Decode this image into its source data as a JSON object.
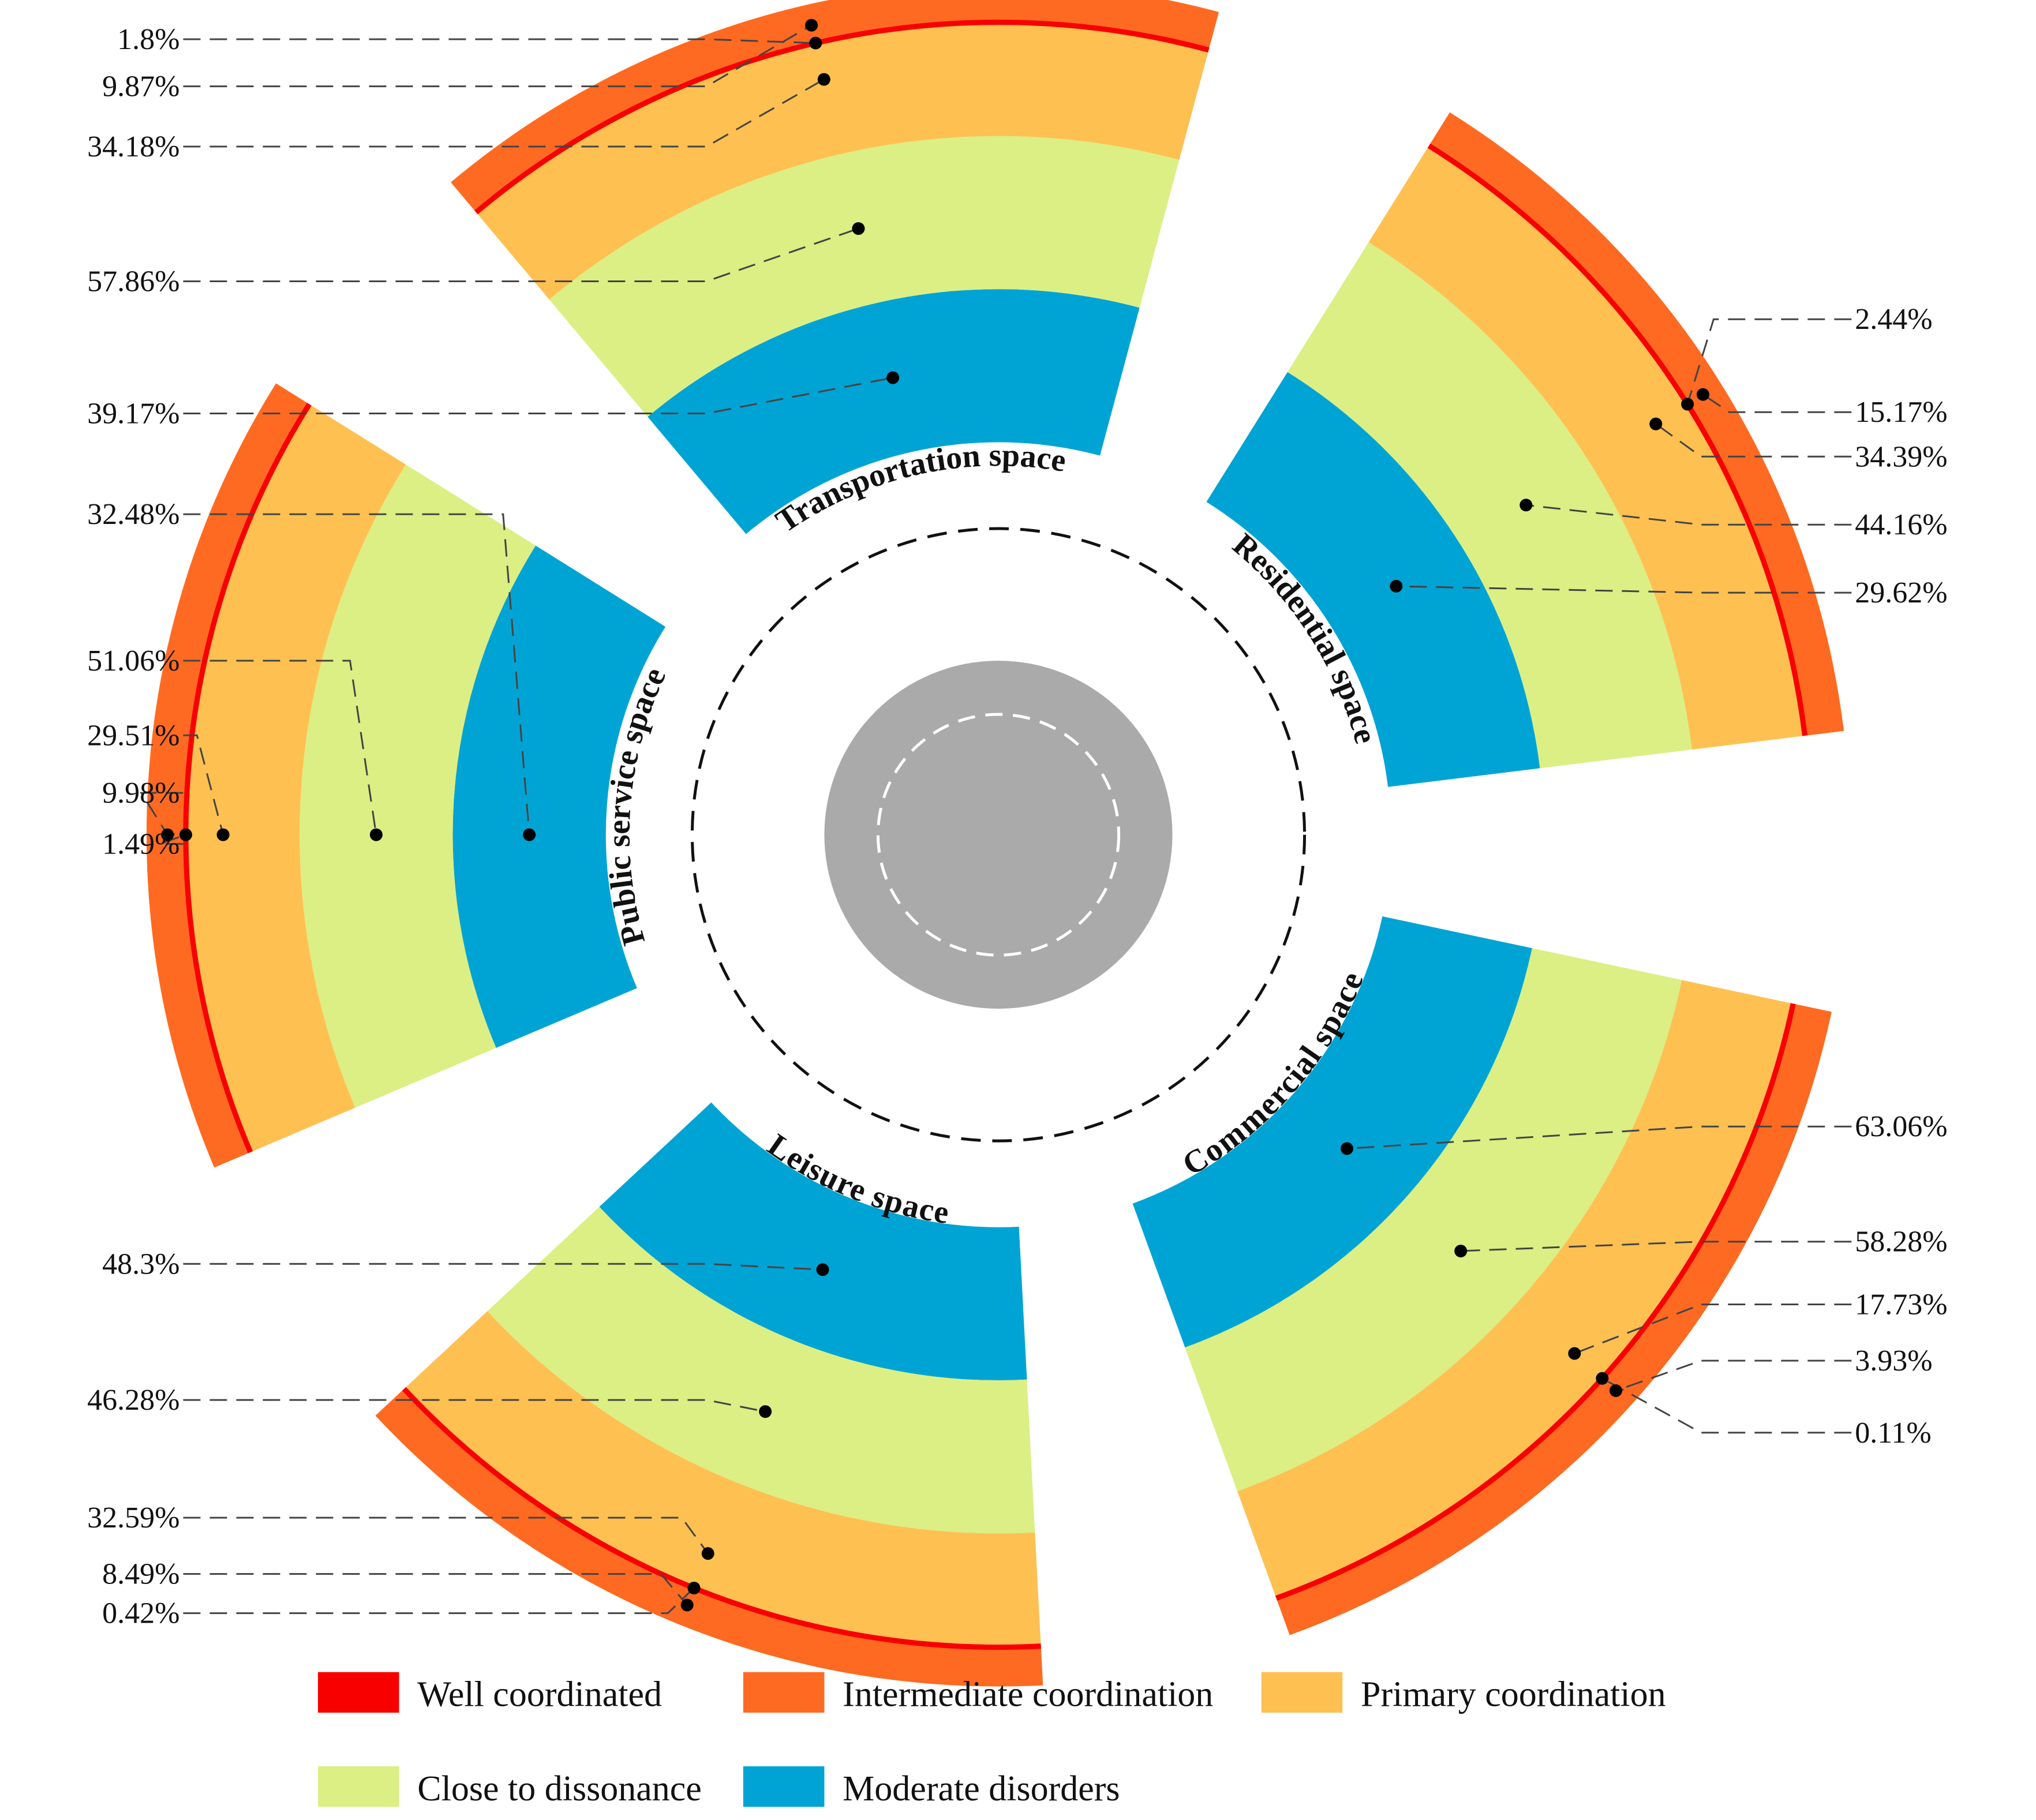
{
  "chart_data": {
    "type": "radial-bar",
    "levels": [
      {
        "name": "Well coordinated",
        "color": "#f80000"
      },
      {
        "name": "Intermediate coordination",
        "color": "#ff6a22"
      },
      {
        "name": "Primary coordination",
        "color": "#ffc052"
      },
      {
        "name": "Close to dissonance",
        "color": "#dbef84"
      },
      {
        "name": "Moderate disorders",
        "color": "#00a4d4"
      }
    ],
    "center_color": "#aaaaaa",
    "sectors": [
      {
        "name": "Transportation space",
        "values": [
          {
            "level": "Well coordinated",
            "label": "1.8%"
          },
          {
            "level": "Intermediate coordination",
            "label": "9.87%"
          },
          {
            "level": "Primary coordination",
            "label": "34.18%"
          },
          {
            "level": "Close to dissonance",
            "label": "57.86%"
          },
          {
            "level": "Moderate disorders",
            "label": "39.17%"
          }
        ]
      },
      {
        "name": "Residential space",
        "values": [
          {
            "level": "Well coordinated",
            "label": "2.44%"
          },
          {
            "level": "Intermediate coordination",
            "label": "15.17%"
          },
          {
            "level": "Primary coordination",
            "label": "34.39%"
          },
          {
            "level": "Close to dissonance",
            "label": "44.16%"
          },
          {
            "level": "Moderate disorders",
            "label": "29.62%"
          }
        ]
      },
      {
        "name": "Commercial space",
        "values": [
          {
            "level": "Well coordinated",
            "label": "0.11%"
          },
          {
            "level": "Intermediate coordination",
            "label": "3.93%"
          },
          {
            "level": "Primary coordination",
            "label": "17.73%"
          },
          {
            "level": "Close to dissonance",
            "label": "58.28%"
          },
          {
            "level": "Moderate disorders",
            "label": "63.06%"
          }
        ]
      },
      {
        "name": "Leisure space",
        "values": [
          {
            "level": "Well coordinated",
            "label": "0.42%"
          },
          {
            "level": "Intermediate coordination",
            "label": "8.49%"
          },
          {
            "level": "Primary coordination",
            "label": "32.59%"
          },
          {
            "level": "Close to dissonance",
            "label": "46.28%"
          },
          {
            "level": "Moderate disorders",
            "label": "48.3%"
          }
        ]
      },
      {
        "name": "Public service space",
        "values": [
          {
            "level": "Well coordinated",
            "label": "1.49%"
          },
          {
            "level": "Intermediate coordination",
            "label": "9.98%"
          },
          {
            "level": "Primary coordination",
            "label": "29.51%"
          },
          {
            "level": "Close to dissonance",
            "label": "51.06%"
          },
          {
            "level": "Moderate disorders",
            "label": "32.48%"
          }
        ]
      }
    ],
    "legend": [
      "Well coordinated",
      "Intermediate coordination",
      "Primary coordination",
      "Close to dissonance",
      "Moderate disorders"
    ],
    "legend_position": "bottom"
  }
}
